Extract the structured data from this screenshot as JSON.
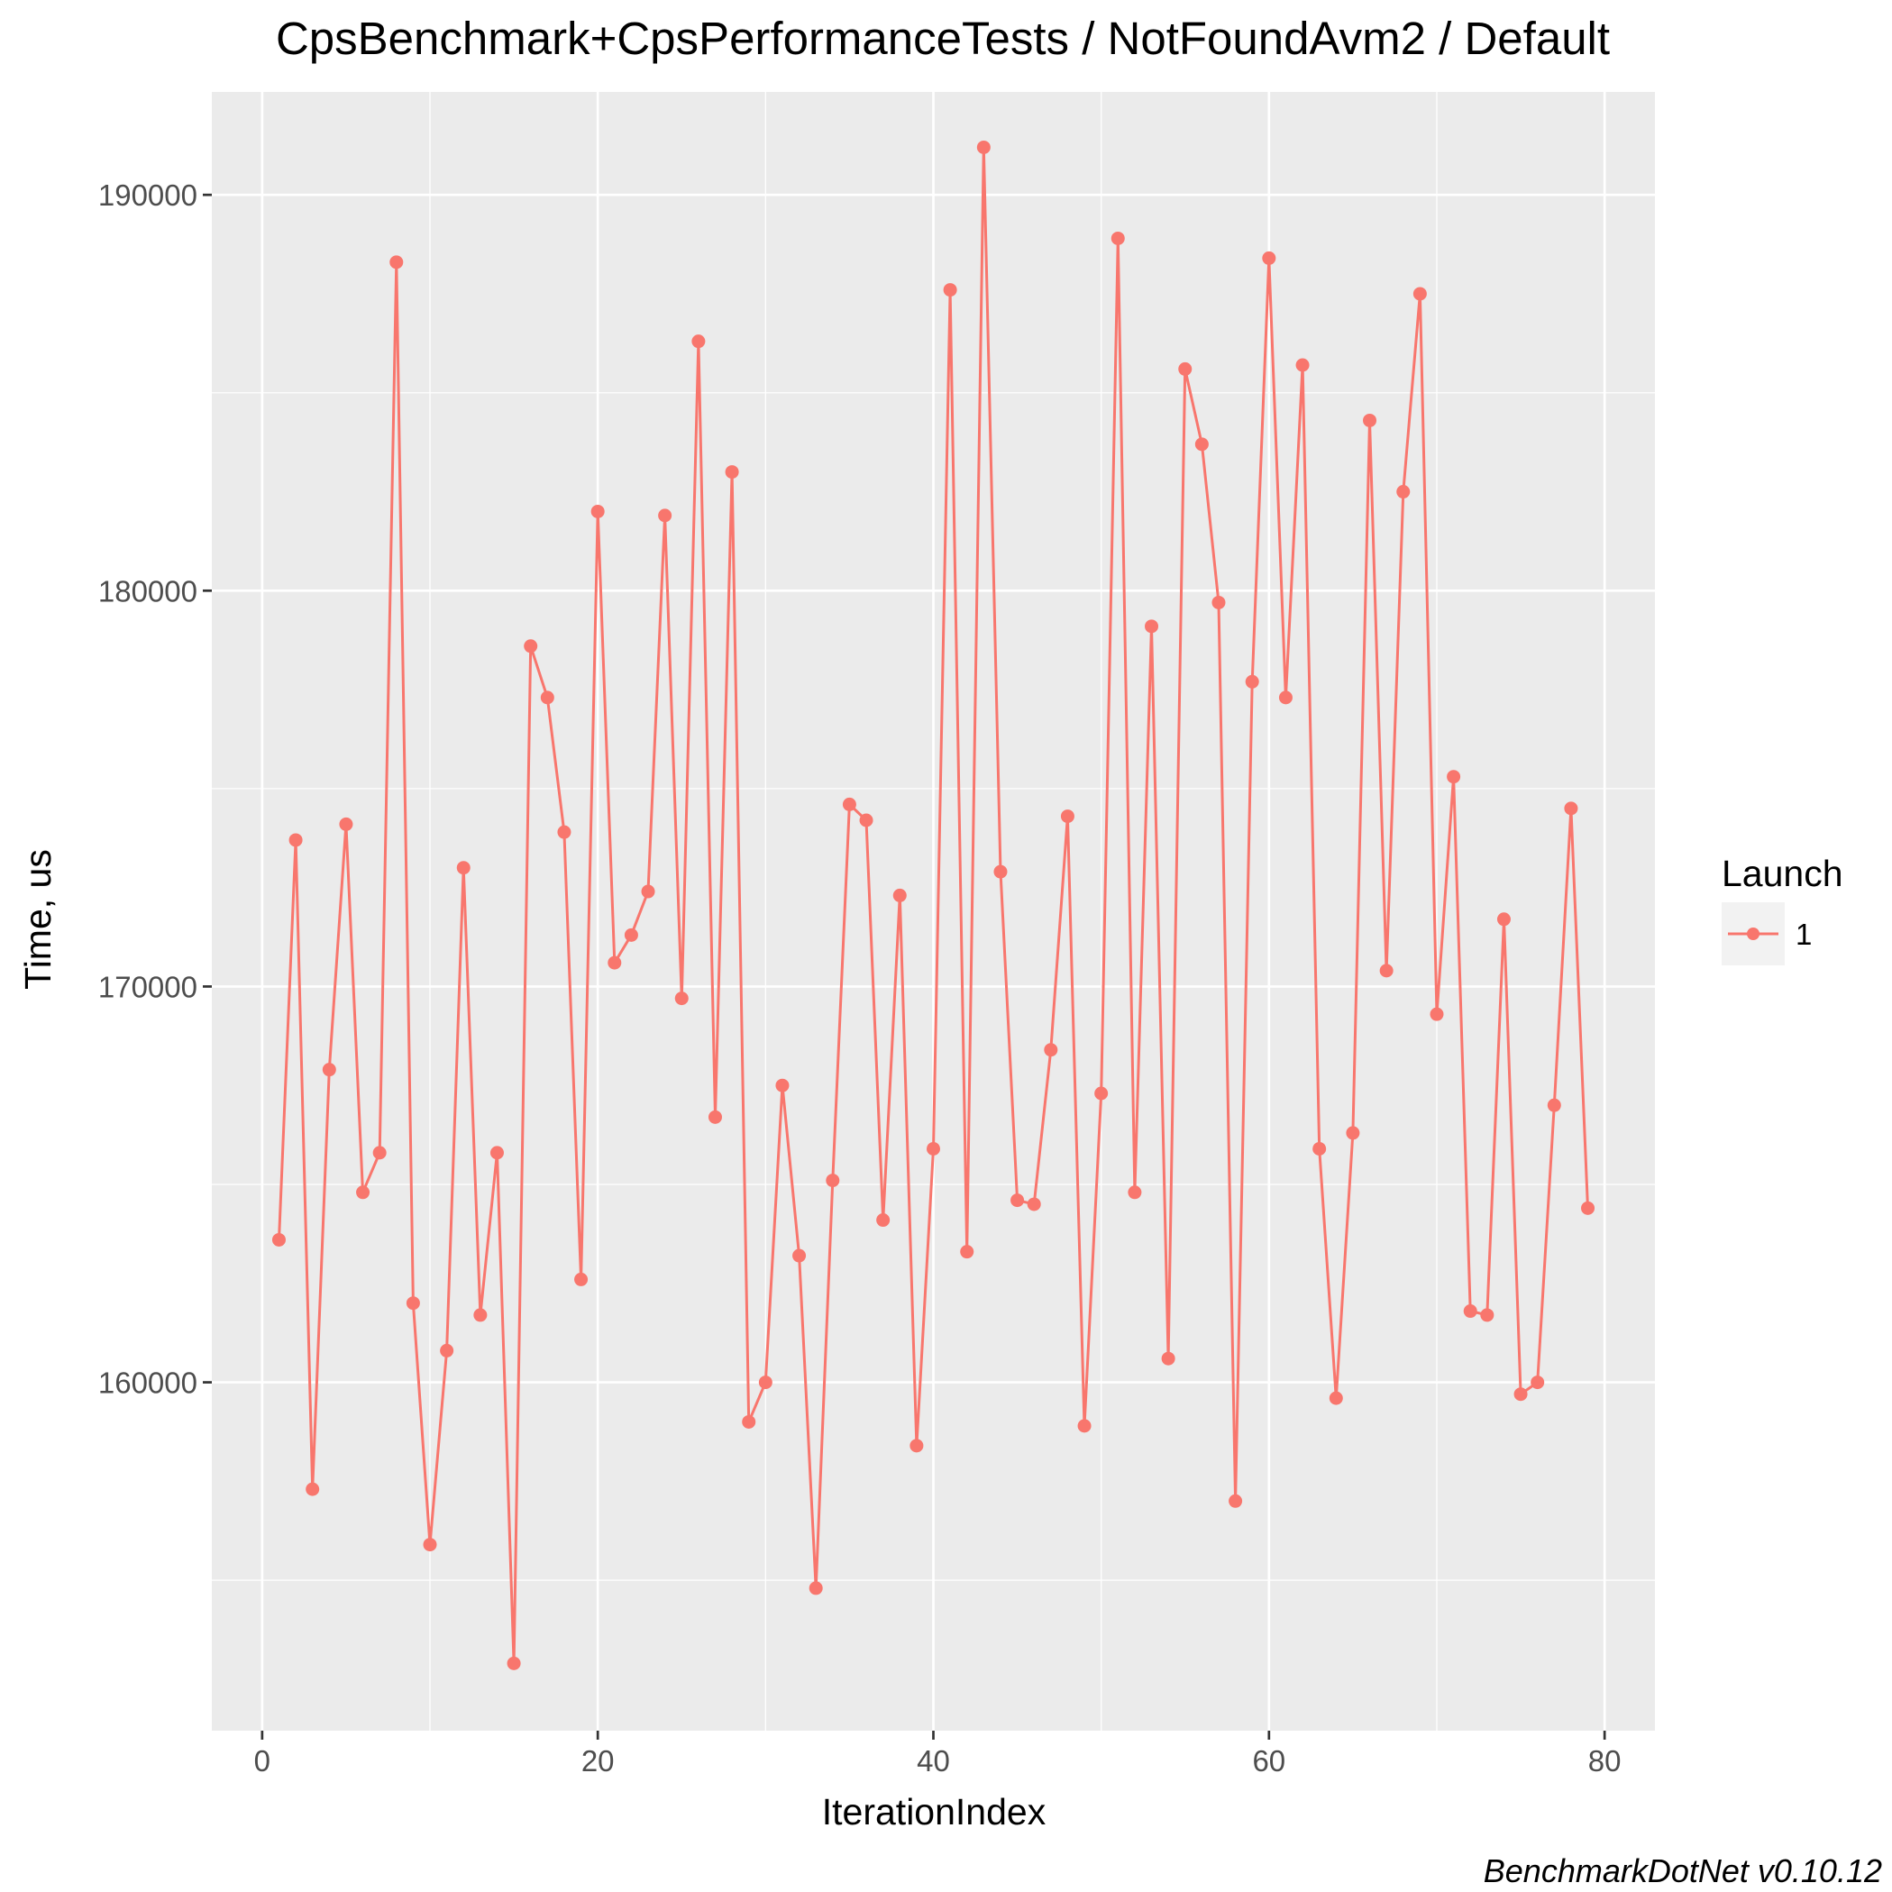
{
  "chart_data": {
    "type": "line",
    "title": "CpsBenchmark+CpsPerformanceTests / NotFoundAvm2 / Default",
    "xlabel": "IterationIndex",
    "ylabel": "Time, us",
    "xlim": [
      -3,
      83
    ],
    "ylim": [
      151200,
      192600
    ],
    "x_ticks": [
      0,
      20,
      40,
      60,
      80
    ],
    "x_tick_labels": [
      "0",
      "20",
      "40",
      "60",
      "80"
    ],
    "x_minor": [
      10,
      30,
      50,
      70
    ],
    "y_ticks": [
      160000,
      170000,
      180000,
      190000
    ],
    "y_tick_labels": [
      "160000",
      "170000",
      "180000",
      "190000"
    ],
    "y_minor": [
      155000,
      165000,
      175000,
      185000
    ],
    "grid": true,
    "legend": {
      "title": "Launch",
      "position": "right"
    },
    "caption": "BenchmarkDotNet v0.10.12",
    "colors": {
      "series": "#f8766d",
      "panel": "#ebebeb",
      "grid": "#ffffff"
    },
    "series": [
      {
        "name": "1",
        "x": [
          1,
          2,
          3,
          4,
          5,
          6,
          7,
          8,
          9,
          10,
          11,
          12,
          13,
          14,
          15,
          16,
          17,
          18,
          19,
          20,
          21,
          22,
          23,
          24,
          25,
          26,
          27,
          28,
          29,
          30,
          31,
          32,
          33,
          34,
          35,
          36,
          37,
          38,
          39,
          40,
          41,
          42,
          43,
          44,
          45,
          46,
          47,
          48,
          49,
          50,
          51,
          52,
          53,
          54,
          55,
          56,
          57,
          58,
          59,
          60,
          61,
          62,
          63,
          64,
          65,
          66,
          67,
          68,
          69,
          70,
          71,
          72,
          73,
          74,
          75,
          76,
          77,
          78,
          79
        ],
        "values": [
          163600,
          173700,
          157300,
          167900,
          174100,
          164800,
          165800,
          188300,
          162000,
          155900,
          160800,
          173000,
          161700,
          165800,
          152900,
          178600,
          177300,
          173900,
          162600,
          182000,
          170600,
          171300,
          172400,
          181900,
          169700,
          186300,
          166700,
          183000,
          159000,
          160000,
          167500,
          163200,
          154800,
          165100,
          174600,
          174200,
          164100,
          172300,
          158400,
          165900,
          187600,
          163300,
          191200,
          172900,
          164600,
          164500,
          168400,
          174300,
          158900,
          167300,
          188900,
          164800,
          179100,
          160600,
          185600,
          183700,
          179700,
          157000,
          177700,
          188400,
          177300,
          185700,
          165900,
          159600,
          166300,
          184300,
          170400,
          182500,
          187500,
          169300,
          175300,
          161800,
          161700,
          171700,
          159700,
          160000,
          167000,
          174500,
          164400
        ]
      }
    ]
  }
}
